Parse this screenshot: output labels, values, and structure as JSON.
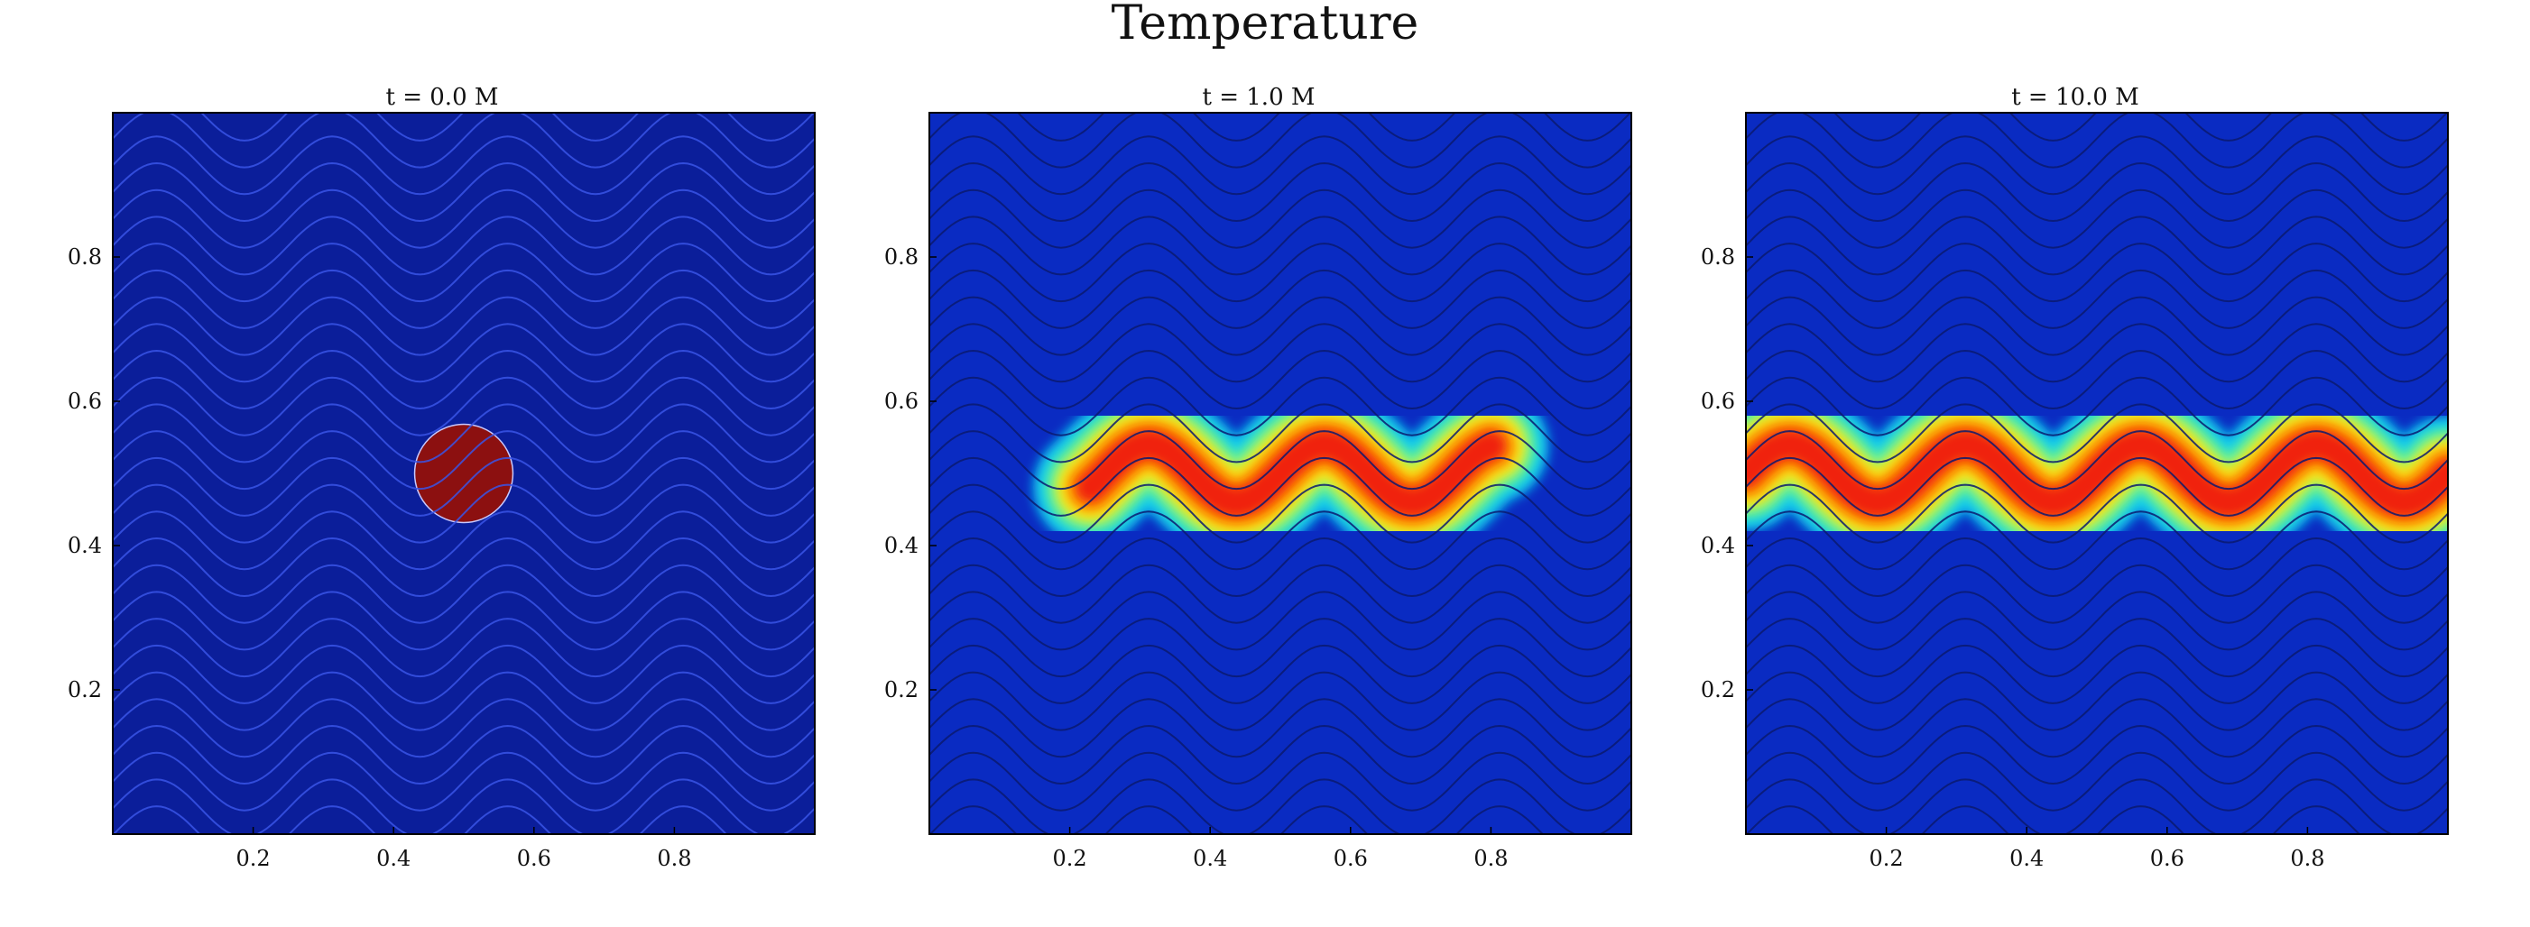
{
  "suptitle": "Temperature",
  "chart_data": [
    {
      "type": "heatmap",
      "title": "t = 0.0 M",
      "xlabel": "",
      "ylabel": "",
      "xlim": [
        0,
        1
      ],
      "ylim": [
        0,
        1
      ],
      "xticks": [
        "0.2",
        "0.4",
        "0.6",
        "0.8"
      ],
      "yticks": [
        "0.2",
        "0.4",
        "0.6",
        "0.8"
      ],
      "background_color": "#0b1e9a",
      "field_lines": {
        "count": 28,
        "amplitude": 0.04,
        "wavelength": 0.25,
        "color": "#3a55e6"
      },
      "hot_region": {
        "shape": "circle",
        "center": [
          0.5,
          0.5
        ],
        "radius": 0.07,
        "color": "#8c1010"
      }
    },
    {
      "type": "heatmap",
      "title": "t = 1.0 M",
      "xlabel": "",
      "ylabel": "",
      "xlim": [
        0,
        1
      ],
      "ylim": [
        0,
        1
      ],
      "xticks": [
        "0.2",
        "0.4",
        "0.6",
        "0.8"
      ],
      "yticks": [
        "0.2",
        "0.4",
        "0.6",
        "0.8"
      ],
      "background_color": "#0d33d8",
      "field_lines": {
        "count": 28,
        "amplitude": 0.04,
        "wavelength": 0.25,
        "color": "#0a1a70"
      },
      "hot_region": {
        "shape": "band",
        "x_range": [
          0.23,
          0.8
        ],
        "center_y": 0.5,
        "half_width": 0.055,
        "amplitude": 0.04,
        "wavelength": 0.25
      }
    },
    {
      "type": "heatmap",
      "title": "t = 10.0 M",
      "xlabel": "",
      "ylabel": "",
      "xlim": [
        0,
        1
      ],
      "ylim": [
        0,
        1
      ],
      "xticks": [
        "0.2",
        "0.4",
        "0.6",
        "0.8"
      ],
      "yticks": [
        "0.2",
        "0.4",
        "0.6",
        "0.8"
      ],
      "background_color": "#0d33d8",
      "field_lines": {
        "count": 28,
        "amplitude": 0.04,
        "wavelength": 0.25,
        "color": "#0a1a70"
      },
      "hot_region": {
        "shape": "band",
        "x_range": [
          0.0,
          1.0
        ],
        "center_y": 0.5,
        "half_width": 0.055,
        "amplitude": 0.04,
        "wavelength": 0.25
      }
    }
  ]
}
